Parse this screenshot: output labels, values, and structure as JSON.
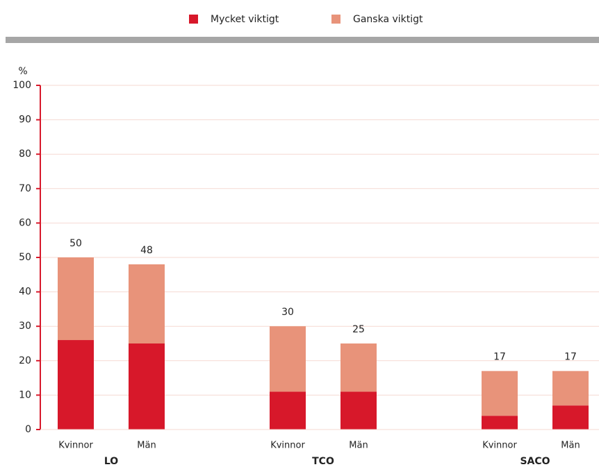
{
  "chart_data": {
    "type": "stacked_bar",
    "categories": [
      "Kvinnor",
      "Män",
      "Kvinnor",
      "Män",
      "Kvinnor",
      "Män"
    ],
    "groups": [
      "LO",
      "TCO",
      "SACO"
    ],
    "series": [
      {
        "name": "Mycket viktigt",
        "color": "#d7182a",
        "values": [
          26,
          25,
          11,
          11,
          4,
          7
        ]
      },
      {
        "name": "Ganska viktigt",
        "color": "#e8937a",
        "values": [
          24,
          23,
          19,
          14,
          13,
          10
        ]
      }
    ],
    "totals": [
      50,
      48,
      30,
      25,
      17,
      17
    ],
    "y_label": "%",
    "ylim": [
      0,
      100
    ],
    "yticks": [
      0,
      10,
      20,
      30,
      40,
      50,
      60,
      70,
      80,
      90,
      100
    ],
    "grid": true
  }
}
